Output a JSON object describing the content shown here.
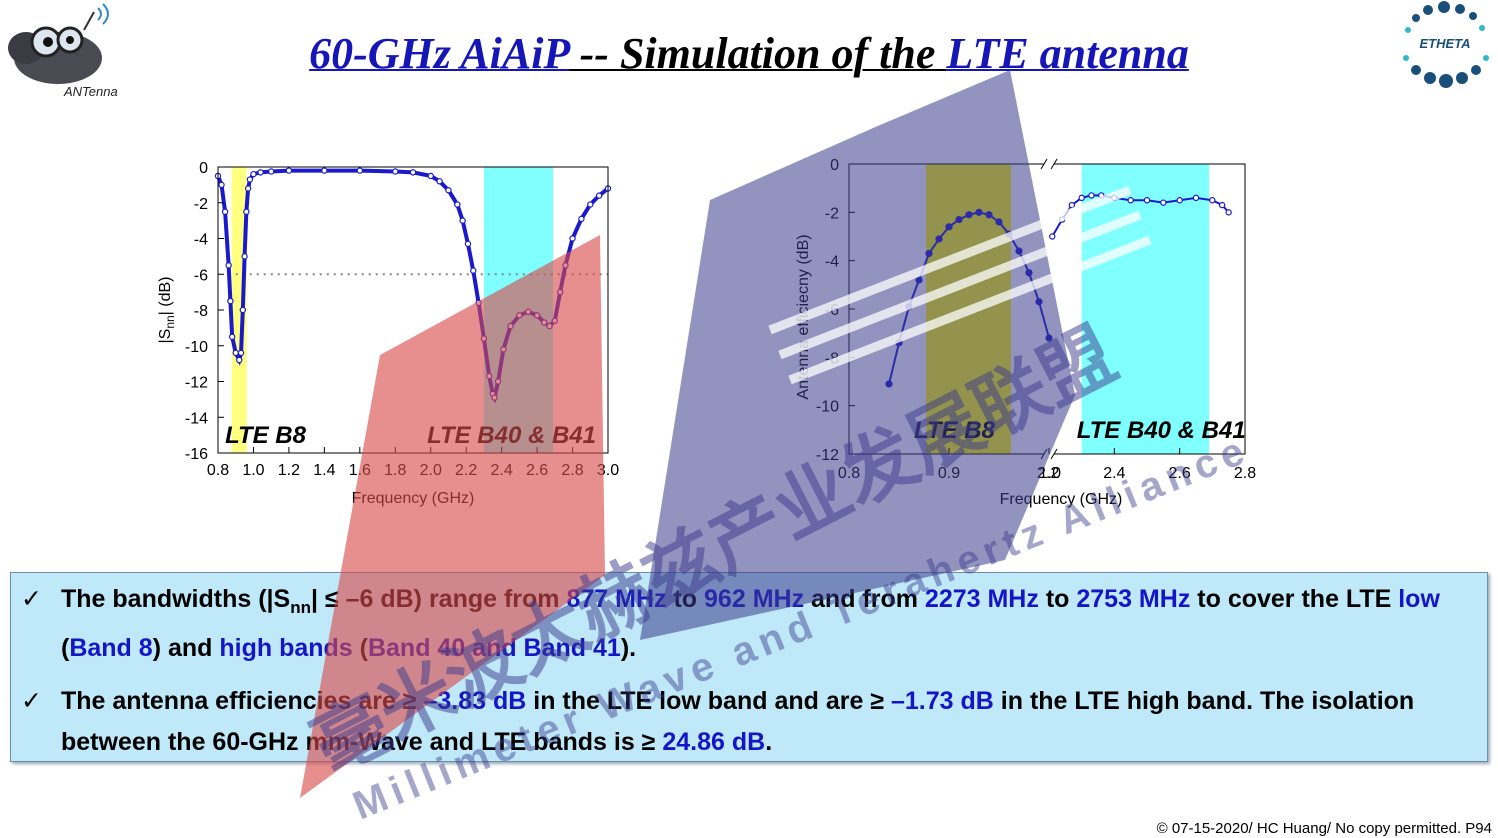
{
  "slide": {
    "title_parts": {
      "a": "60-GHz AiAiP",
      "b": " -- Simulation of the ",
      "c": "LTE antenna"
    },
    "logo_left_text": "ANTenna",
    "logo_right_text": "ETHETA",
    "footer": "© 07-15-2020/ HC Huang/ No copy permitted. P94",
    "watermark": {
      "cn": "毫米波太赫兹产业发展联盟",
      "en": "Millimeter Wave and Terahertz Alliance"
    }
  },
  "bullets": {
    "check": "✓",
    "b1": {
      "s1": "The bandwidths (|S",
      "sub": "nn",
      "s2": "| ≤ –6 dB) range from ",
      "v1": "877 MHz",
      "s3": " to ",
      "v2": "962 MHz",
      "s4": " and from ",
      "v3": "2273 MHz",
      "s5": " to ",
      "v4": "2753 MHz",
      "s6": " to cover the LTE ",
      "v5": "low",
      "s7": " (",
      "v6": "Band 8",
      "s8": ") and ",
      "v7": "high bands",
      "s9": " (",
      "v8": "Band 40 and Band 41",
      "s10": ")."
    },
    "b2": {
      "s1": "The antenna efficiencies are ≥ ",
      "v1": "–3.83 dB",
      "s2": " in the LTE low band and are ≥ ",
      "v2": "–1.73 dB",
      "s3": " in the LTE high band. The isolation between the 60-GHz mm-Wave and LTE bands is ≥ ",
      "v3": "24.86 dB",
      "s4": "."
    }
  },
  "chart_data": [
    {
      "type": "line",
      "ylabel": "|S",
      "ylabel_sub": "nn",
      "ylabel_unit": "| (dB)",
      "xlabel": "Frequency (GHz)",
      "xlim": [
        0.8,
        3.0
      ],
      "ylim": [
        -16,
        0
      ],
      "xticks": [
        0.8,
        1.0,
        1.2,
        1.4,
        1.6,
        1.8,
        2.0,
        2.2,
        2.4,
        2.6,
        2.8,
        3.0
      ],
      "xtick_labels": [
        "0.8",
        "1.0",
        "1.2",
        "1.4",
        "1.6",
        "1.8",
        "2.0",
        "2.2",
        "2.4",
        "2.6",
        "2.8",
        "3.0"
      ],
      "yticks": [
        0,
        -2,
        -4,
        -6,
        -8,
        -10,
        -12,
        -14,
        -16
      ],
      "ytick_labels": [
        "0",
        "-2",
        "-4",
        "-6",
        "-8",
        "-10",
        "-12",
        "-14",
        "-16"
      ],
      "threshold": -6,
      "bands": [
        {
          "label": "LTE B8",
          "x0": 0.877,
          "x1": 0.962,
          "color": "#ffff80"
        },
        {
          "label": "LTE B40 & B41",
          "x0": 2.3,
          "x1": 2.69,
          "color": "#80ffff"
        }
      ],
      "series": [
        {
          "color": "#1a1acc",
          "x": [
            0.8,
            0.82,
            0.84,
            0.86,
            0.87,
            0.88,
            0.9,
            0.92,
            0.93,
            0.94,
            0.95,
            0.96,
            0.97,
            0.98,
            1.0,
            1.04,
            1.1,
            1.2,
            1.4,
            1.6,
            1.8,
            1.9,
            2.0,
            2.05,
            2.1,
            2.15,
            2.18,
            2.21,
            2.24,
            2.27,
            2.3,
            2.33,
            2.35,
            2.36,
            2.38,
            2.41,
            2.45,
            2.5,
            2.55,
            2.6,
            2.64,
            2.67,
            2.7,
            2.73,
            2.76,
            2.8,
            2.85,
            2.9,
            2.95,
            3.0
          ],
          "y": [
            -0.5,
            -1.0,
            -2.5,
            -5.5,
            -7.5,
            -9.5,
            -10.4,
            -10.8,
            -10.4,
            -8.0,
            -5.0,
            -2.5,
            -1.2,
            -0.7,
            -0.4,
            -0.3,
            -0.25,
            -0.2,
            -0.2,
            -0.2,
            -0.25,
            -0.3,
            -0.5,
            -0.8,
            -1.3,
            -2.1,
            -3.0,
            -4.3,
            -5.8,
            -7.6,
            -9.6,
            -11.7,
            -12.7,
            -12.9,
            -12.0,
            -10.2,
            -8.9,
            -8.3,
            -8.1,
            -8.3,
            -8.7,
            -8.9,
            -8.6,
            -7.0,
            -5.5,
            -4.0,
            -2.9,
            -2.1,
            -1.6,
            -1.2
          ]
        }
      ]
    },
    {
      "type": "line",
      "ylabel": "Antenna efficiecny (dB)",
      "xlabel": "Frequency (GHz)",
      "ylim": [
        -12,
        0
      ],
      "axis_break": true,
      "xtick_labels": [
        "0.8",
        "0.9",
        "1.0",
        "2.2",
        "2.4",
        "2.6",
        "2.8"
      ],
      "yticks": [
        0,
        -2,
        -4,
        -6,
        -8,
        -10,
        -12
      ],
      "ytick_labels": [
        "0",
        "-2",
        "-4",
        "-6",
        "-8",
        "-10",
        "-12"
      ],
      "bands": [
        {
          "label": "LTE B8",
          "x0": 0.877,
          "x1": 0.962,
          "color": "#ffff00"
        },
        {
          "label": "LTE B40 & B41",
          "x0": 2.3,
          "x1": 2.69,
          "color": "#80ffff"
        }
      ],
      "series": [
        {
          "color": "#1a1acc",
          "segment": "low",
          "x": [
            0.84,
            0.85,
            0.86,
            0.87,
            0.88,
            0.89,
            0.9,
            0.91,
            0.92,
            0.93,
            0.94,
            0.95,
            0.96,
            0.97,
            0.98,
            0.99,
            1.0
          ],
          "y": [
            -9.1,
            -7.4,
            -5.9,
            -4.8,
            -3.7,
            -3.1,
            -2.6,
            -2.3,
            -2.1,
            -2.0,
            -2.1,
            -2.4,
            -2.9,
            -3.6,
            -4.5,
            -5.7,
            -7.2
          ]
        },
        {
          "color": "#1a1acc",
          "segment": "high",
          "x": [
            2.21,
            2.24,
            2.27,
            2.3,
            2.33,
            2.36,
            2.4,
            2.45,
            2.5,
            2.55,
            2.6,
            2.65,
            2.7,
            2.73,
            2.75
          ],
          "y": [
            -3.0,
            -2.3,
            -1.7,
            -1.4,
            -1.3,
            -1.3,
            -1.4,
            -1.5,
            -1.5,
            -1.6,
            -1.5,
            -1.4,
            -1.5,
            -1.7,
            -2.0
          ]
        }
      ]
    }
  ]
}
